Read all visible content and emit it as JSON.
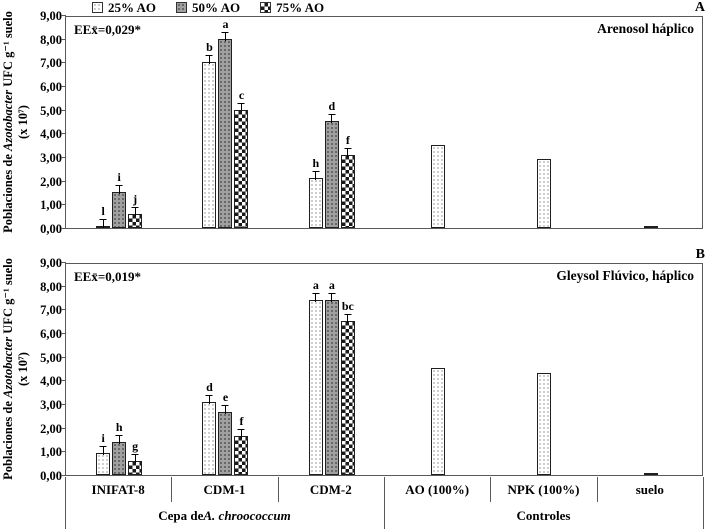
{
  "legend": {
    "items": [
      {
        "label": "25% AO",
        "pattern": "dots-white"
      },
      {
        "label": "50% AO",
        "pattern": "dots-gray"
      },
      {
        "label": "75% AO",
        "pattern": "checker"
      }
    ]
  },
  "axis": {
    "categories": [
      "INIFAT-8",
      "CDM-1",
      "CDM-2",
      "AO (100%)",
      "NPK (100%)",
      "suelo"
    ],
    "group_labels": [
      {
        "pre": "Cepa de ",
        "italic": "A. chroococcum",
        "post": ""
      },
      {
        "pre": "Controles",
        "italic": "",
        "post": ""
      }
    ]
  },
  "colors": {
    "axis_line": "#595959",
    "bar_border": "#1f1f1f",
    "text": "#000000"
  },
  "chart_data": [
    {
      "type": "bar",
      "panel_letter": "A",
      "title": "Arenosol háplico",
      "annotation": "EEx̄=0,029*",
      "ylabel_parts": {
        "pre": "Poblaciones de ",
        "italic": "Azotobacter",
        "post": " UFC g⁻¹ suelo (x 10⁷)"
      },
      "ylim": [
        0,
        9
      ],
      "ytick_step": 1,
      "decimal_separator": ",",
      "legend_position": "top",
      "grid": false,
      "groups": [
        {
          "category": "INIFAT-8",
          "bars": [
            {
              "series": "25% AO",
              "pattern": "dots-white",
              "value": 0.05,
              "letter": "l"
            },
            {
              "series": "50% AO",
              "pattern": "dots-gray",
              "value": 1.5,
              "letter": "i"
            },
            {
              "series": "75% AO",
              "pattern": "checker",
              "value": 0.6,
              "letter": "j"
            }
          ]
        },
        {
          "category": "CDM-1",
          "bars": [
            {
              "series": "25% AO",
              "pattern": "dots-white",
              "value": 7.0,
              "letter": "b"
            },
            {
              "series": "50% AO",
              "pattern": "dots-gray",
              "value": 8.0,
              "letter": "a"
            },
            {
              "series": "75% AO",
              "pattern": "checker",
              "value": 5.0,
              "letter": "c"
            }
          ]
        },
        {
          "category": "CDM-2",
          "bars": [
            {
              "series": "25% AO",
              "pattern": "dots-white",
              "value": 2.1,
              "letter": "h"
            },
            {
              "series": "50% AO",
              "pattern": "dots-gray",
              "value": 4.5,
              "letter": "d"
            },
            {
              "series": "75% AO",
              "pattern": "checker",
              "value": 3.1,
              "letter": "f"
            }
          ]
        },
        {
          "category": "AO (100%)",
          "bars": [
            {
              "series": "AO (100%)",
              "pattern": "dots-white",
              "value": 3.5,
              "letter": ""
            }
          ]
        },
        {
          "category": "NPK (100%)",
          "bars": [
            {
              "series": "NPK (100%)",
              "pattern": "dots-white",
              "value": 2.9,
              "letter": ""
            }
          ]
        },
        {
          "category": "suelo",
          "bars": [
            {
              "series": "suelo",
              "pattern": "solid-dark",
              "value": 0.07,
              "letter": ""
            }
          ]
        }
      ]
    },
    {
      "type": "bar",
      "panel_letter": "B",
      "title": "Gleysol Flúvico, háplico",
      "annotation": "EEx̄=0,019*",
      "ylabel_parts": {
        "pre": "Poblaciones de ",
        "italic": "Azotobacter",
        "post": " UFC g⁻¹ suelo (x 10⁷)"
      },
      "ylim": [
        0,
        9
      ],
      "ytick_step": 1,
      "decimal_separator": ",",
      "legend_position": "top",
      "grid": false,
      "groups": [
        {
          "category": "INIFAT-8",
          "bars": [
            {
              "series": "25% AO",
              "pattern": "dots-white",
              "value": 0.95,
              "letter": "i"
            },
            {
              "series": "50% AO",
              "pattern": "dots-gray",
              "value": 1.4,
              "letter": "h"
            },
            {
              "series": "75% AO",
              "pattern": "checker",
              "value": 0.6,
              "letter": "g"
            }
          ]
        },
        {
          "category": "CDM-1",
          "bars": [
            {
              "series": "25% AO",
              "pattern": "dots-white",
              "value": 3.1,
              "letter": "d"
            },
            {
              "series": "50% AO",
              "pattern": "dots-gray",
              "value": 2.65,
              "letter": "e"
            },
            {
              "series": "75% AO",
              "pattern": "checker",
              "value": 1.65,
              "letter": "f"
            }
          ]
        },
        {
          "category": "CDM-2",
          "bars": [
            {
              "series": "25% AO",
              "pattern": "dots-white",
              "value": 7.4,
              "letter": "a"
            },
            {
              "series": "50% AO",
              "pattern": "dots-gray",
              "value": 7.4,
              "letter": "a"
            },
            {
              "series": "75% AO",
              "pattern": "checker",
              "value": 6.5,
              "letter": "bc"
            }
          ]
        },
        {
          "category": "AO (100%)",
          "bars": [
            {
              "series": "AO (100%)",
              "pattern": "dots-white",
              "value": 4.5,
              "letter": ""
            }
          ]
        },
        {
          "category": "NPK (100%)",
          "bars": [
            {
              "series": "NPK (100%)",
              "pattern": "dots-white",
              "value": 4.3,
              "letter": ""
            }
          ]
        },
        {
          "category": "suelo",
          "bars": [
            {
              "series": "suelo",
              "pattern": "solid-dark",
              "value": 0.1,
              "letter": ""
            }
          ]
        }
      ]
    }
  ]
}
